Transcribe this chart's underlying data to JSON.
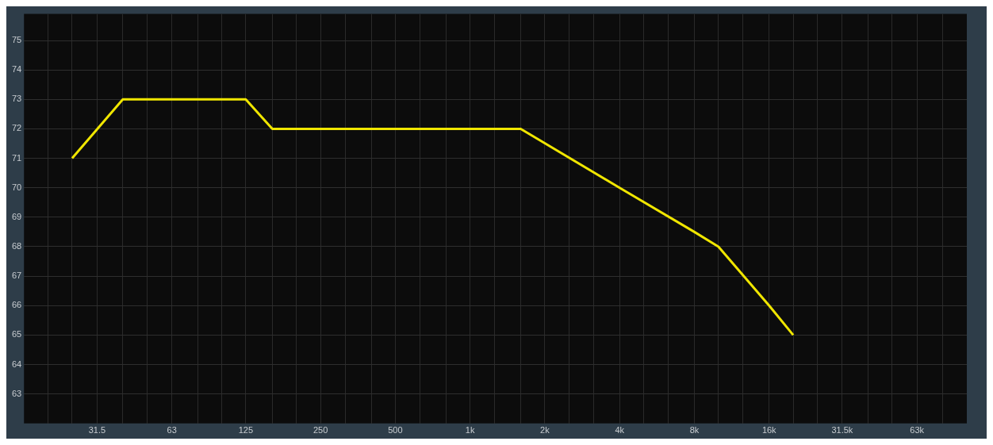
{
  "chart_data": {
    "type": "line",
    "x": [
      25,
      40,
      125,
      160,
      1600,
      4000,
      8000,
      10000,
      16000,
      20000
    ],
    "series": [
      {
        "color": "#f0e600",
        "values": [
          71,
          73,
          73,
          72,
          72,
          70,
          68.5,
          68,
          66,
          65
        ]
      }
    ],
    "xlim": [
      16,
      100000
    ],
    "xticks": [
      {
        "value": 20,
        "label": null
      },
      {
        "value": 25,
        "label": null
      },
      {
        "value": 31.5,
        "label": "31.5"
      },
      {
        "value": 40,
        "label": null
      },
      {
        "value": 50,
        "label": null
      },
      {
        "value": 63,
        "label": "63"
      },
      {
        "value": 80,
        "label": null
      },
      {
        "value": 100,
        "label": null
      },
      {
        "value": 125,
        "label": "125"
      },
      {
        "value": 160,
        "label": null
      },
      {
        "value": 200,
        "label": null
      },
      {
        "value": 250,
        "label": "250"
      },
      {
        "value": 315,
        "label": null
      },
      {
        "value": 400,
        "label": null
      },
      {
        "value": 500,
        "label": "500"
      },
      {
        "value": 630,
        "label": null
      },
      {
        "value": 800,
        "label": null
      },
      {
        "value": 1000,
        "label": "1k"
      },
      {
        "value": 1250,
        "label": null
      },
      {
        "value": 1600,
        "label": null
      },
      {
        "value": 2000,
        "label": "2k"
      },
      {
        "value": 2500,
        "label": null
      },
      {
        "value": 3150,
        "label": null
      },
      {
        "value": 4000,
        "label": "4k"
      },
      {
        "value": 5000,
        "label": null
      },
      {
        "value": 6300,
        "label": null
      },
      {
        "value": 8000,
        "label": "8k"
      },
      {
        "value": 10000,
        "label": null
      },
      {
        "value": 12500,
        "label": null
      },
      {
        "value": 16000,
        "label": "16k"
      },
      {
        "value": 20000,
        "label": null
      },
      {
        "value": 25000,
        "label": null
      },
      {
        "value": 31500,
        "label": "31.5k"
      },
      {
        "value": 40000,
        "label": null
      },
      {
        "value": 50000,
        "label": null
      },
      {
        "value": 63000,
        "label": "63k"
      },
      {
        "value": 80000,
        "label": null
      }
    ],
    "ylim": [
      62,
      75.9
    ],
    "yticks": [
      63,
      64,
      65,
      66,
      67,
      68,
      69,
      70,
      71,
      72,
      73,
      74,
      75
    ],
    "log": "x",
    "grid": true,
    "legend": false,
    "marker": "none",
    "line_style": "solid"
  }
}
